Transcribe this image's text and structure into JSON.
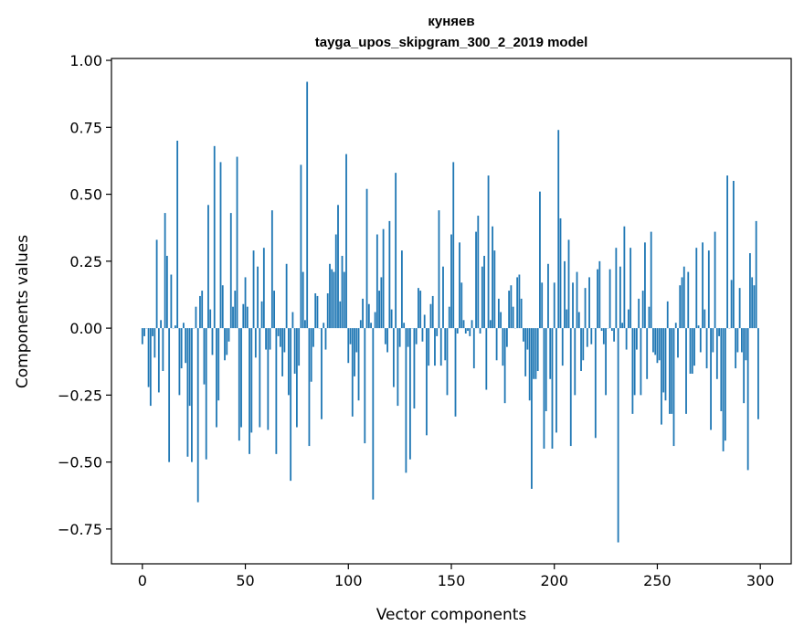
{
  "chart_data": {
    "type": "bar",
    "title": [
      "куняев",
      "tayga_upos_skipgram_300_2_2019 model"
    ],
    "xlabel": "Vector components",
    "ylabel": "Components values",
    "xlim": [
      -15,
      315
    ],
    "ylim": [
      -0.88,
      1.007
    ],
    "xticks": [
      0,
      50,
      100,
      150,
      200,
      250,
      300
    ],
    "xtick_labels": [
      "0",
      "50",
      "100",
      "150",
      "200",
      "250",
      "300"
    ],
    "yticks": [
      1.0,
      0.75,
      0.5,
      0.25,
      0.0,
      -0.25,
      -0.5,
      -0.75
    ],
    "ytick_labels": [
      "1.00",
      "0.75",
      "0.50",
      "0.25",
      "0.00",
      "−0.25",
      "−0.50",
      "−0.75"
    ],
    "grid": false,
    "bar_color": "#1f77b4",
    "values": [
      -0.06,
      -0.03,
      0.0,
      -0.22,
      -0.29,
      -0.03,
      -0.11,
      0.33,
      -0.24,
      0.03,
      -0.16,
      0.43,
      0.27,
      -0.5,
      0.2,
      0.0,
      0.01,
      0.7,
      -0.25,
      -0.15,
      0.02,
      -0.13,
      -0.48,
      -0.29,
      -0.5,
      0.0,
      0.08,
      -0.65,
      0.12,
      0.14,
      -0.21,
      -0.49,
      0.46,
      0.07,
      -0.1,
      0.68,
      -0.37,
      -0.27,
      0.62,
      0.16,
      -0.12,
      -0.1,
      -0.05,
      0.43,
      0.08,
      0.14,
      0.64,
      -0.42,
      -0.37,
      0.09,
      0.19,
      0.08,
      -0.47,
      -0.39,
      0.29,
      -0.11,
      0.23,
      -0.37,
      0.1,
      0.3,
      -0.08,
      -0.38,
      -0.08,
      0.44,
      0.14,
      -0.47,
      -0.03,
      -0.07,
      -0.18,
      -0.09,
      0.24,
      -0.25,
      -0.57,
      0.06,
      -0.17,
      -0.37,
      -0.14,
      0.61,
      0.21,
      0.03,
      0.92,
      -0.44,
      -0.2,
      -0.07,
      0.13,
      0.12,
      0.0,
      -0.34,
      0.02,
      -0.08,
      0.13,
      0.24,
      0.22,
      0.21,
      0.35,
      0.46,
      0.1,
      0.27,
      0.21,
      0.65,
      -0.13,
      -0.06,
      -0.33,
      -0.18,
      -0.09,
      -0.27,
      0.03,
      0.11,
      -0.43,
      0.52,
      0.09,
      0.02,
      -0.64,
      0.06,
      0.35,
      0.14,
      0.19,
      0.37,
      -0.06,
      -0.09,
      0.4,
      0.07,
      -0.22,
      0.58,
      -0.29,
      -0.07,
      0.29,
      0.02,
      -0.54,
      -0.07,
      -0.49,
      0.0,
      -0.3,
      -0.06,
      0.15,
      0.14,
      -0.05,
      0.05,
      -0.4,
      -0.14,
      0.09,
      0.12,
      -0.14,
      -0.03,
      0.44,
      -0.14,
      0.23,
      -0.12,
      -0.25,
      0.08,
      0.35,
      0.62,
      -0.33,
      -0.02,
      0.32,
      0.17,
      0.03,
      -0.02,
      -0.01,
      -0.03,
      0.03,
      -0.15,
      0.36,
      0.42,
      -0.02,
      0.23,
      0.27,
      -0.23,
      0.57,
      0.03,
      0.38,
      0.29,
      -0.12,
      0.11,
      0.06,
      -0.14,
      -0.28,
      -0.07,
      0.14,
      0.16,
      0.08,
      0.0,
      0.19,
      0.2,
      0.11,
      -0.05,
      -0.18,
      -0.08,
      -0.27,
      -0.6,
      -0.19,
      -0.19,
      -0.16,
      0.51,
      0.17,
      -0.45,
      -0.31,
      0.24,
      -0.19,
      -0.45,
      0.17,
      -0.39,
      0.74,
      0.41,
      -0.14,
      0.25,
      0.07,
      0.33,
      -0.44,
      0.17,
      -0.25,
      0.21,
      0.06,
      -0.16,
      -0.12,
      0.15,
      -0.07,
      0.19,
      -0.06,
      0.0,
      -0.41,
      0.22,
      0.25,
      -0.01,
      -0.06,
      -0.25,
      0.0,
      0.22,
      -0.01,
      -0.05,
      0.3,
      -0.8,
      0.23,
      0.02,
      0.38,
      -0.08,
      0.07,
      0.3,
      -0.32,
      -0.25,
      -0.08,
      0.11,
      -0.25,
      0.14,
      0.32,
      -0.19,
      0.08,
      0.36,
      -0.09,
      -0.1,
      -0.13,
      -0.12,
      -0.36,
      -0.24,
      -0.27,
      0.1,
      -0.32,
      -0.32,
      -0.44,
      0.02,
      -0.11,
      0.16,
      0.19,
      0.23,
      -0.32,
      0.21,
      -0.17,
      -0.17,
      -0.14,
      0.3,
      0.01,
      -0.09,
      0.32,
      0.07,
      -0.15,
      0.29,
      -0.38,
      -0.09,
      0.36,
      -0.19,
      -0.03,
      -0.31,
      -0.46,
      -0.42,
      0.57,
      0.0,
      0.18,
      0.55,
      -0.15,
      -0.09,
      0.15,
      -0.09,
      -0.28,
      -0.12,
      -0.53,
      0.28,
      0.19,
      0.16,
      0.4,
      -0.34
    ]
  }
}
